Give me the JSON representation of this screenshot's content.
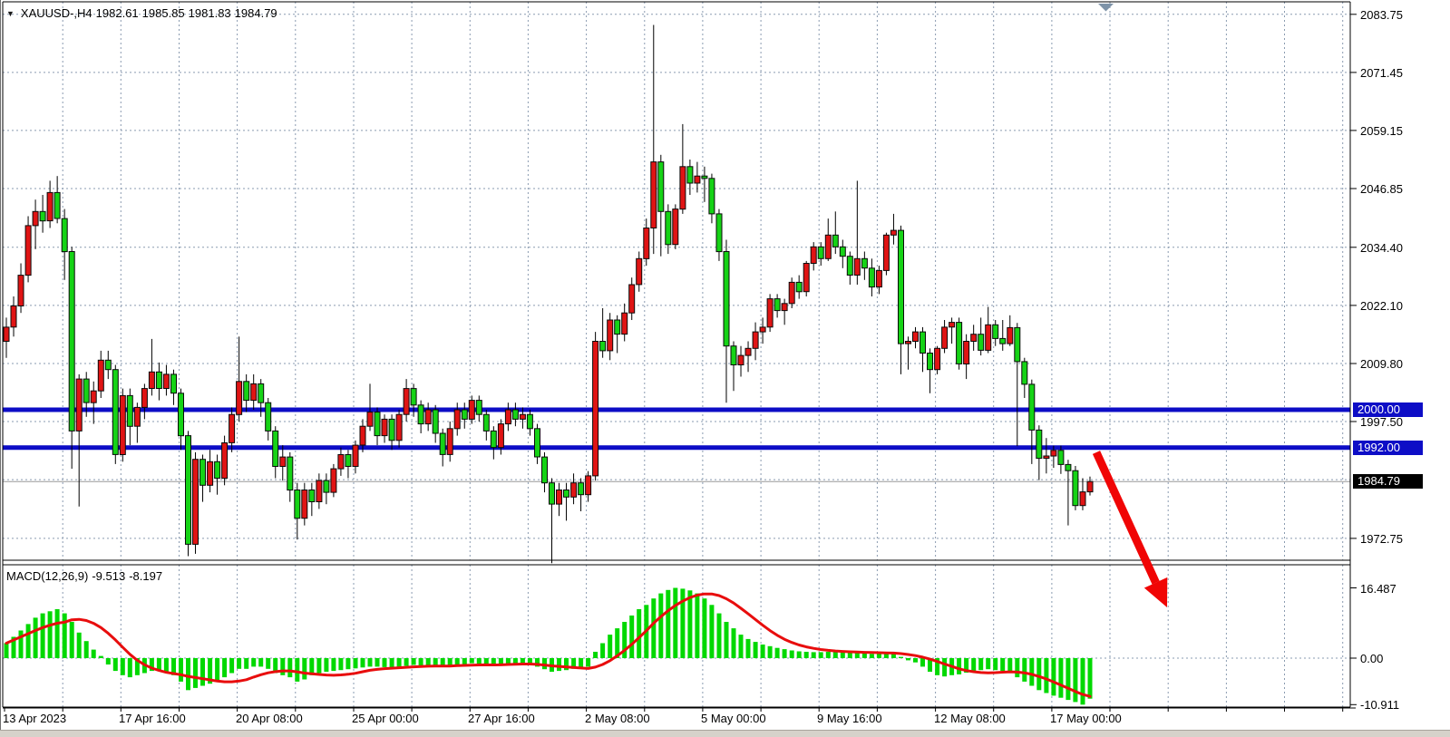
{
  "header": {
    "symbol": "XAUUSD-,H4",
    "open": "1982.61",
    "high": "1985.85",
    "low": "1981.83",
    "close": "1984.79"
  },
  "macd_header": {
    "label": "MACD(12,26,9)",
    "macd_value": "-9.513",
    "signal_value": "-8.197"
  },
  "chart_data": {
    "type": "candlestick",
    "symbol": "XAUUSD-",
    "timeframe": "H4",
    "grid": "on",
    "price_axis": {
      "ticks": [
        "2083.75",
        "2071.45",
        "2059.15",
        "2046.85",
        "2034.40",
        "2022.10",
        "2009.80",
        "1997.50",
        "1972.75"
      ],
      "grid_only_ticks": [
        1985.2
      ],
      "ylim": [
        1968.0,
        2086.4
      ]
    },
    "time_axis": {
      "labels": [
        "13 Apr 2023",
        "17 Apr 16:00",
        "20 Apr 08:00",
        "25 Apr 00:00",
        "27 Apr 16:00",
        "2 May 08:00",
        "5 May 00:00",
        "9 May 16:00",
        "12 May 08:00",
        "17 May 00:00"
      ],
      "bars_per_label": 16
    },
    "levels": [
      {
        "price": 2000.0,
        "label": "2000.00",
        "color": "#0d0dc6"
      },
      {
        "price": 1992.0,
        "label": "1992.00",
        "color": "#0d0dc6"
      }
    ],
    "current_price": {
      "price": 1984.79,
      "label": "1984.79",
      "line_color": "#999999",
      "box_color": "#000000"
    },
    "colors": {
      "bull_fill": "#e01414",
      "bear_fill": "#16d316",
      "candle_border": "#0a0a0a",
      "wick": "#000000",
      "grid": "#8a9bb0",
      "macd_histogram": "#00d800",
      "macd_signal": "#e80d0d",
      "level_blue": "#0d0dc6",
      "arrow_red": "#f00505",
      "shift_marker": "#7e93a8"
    },
    "annotations": {
      "trend_arrow": {
        "type": "arrow",
        "direction": "down-right",
        "color": "#f00505"
      }
    },
    "candles": [
      [
        2014.5,
        2019.5,
        2011.0,
        2017.5
      ],
      [
        2017.5,
        2024.0,
        2015.5,
        2022.0
      ],
      [
        2022.0,
        2031.0,
        2020.5,
        2028.5
      ],
      [
        2028.5,
        2041.0,
        2027.0,
        2039.0
      ],
      [
        2039.0,
        2044.5,
        2034.0,
        2042.0
      ],
      [
        2042.0,
        2045.5,
        2037.5,
        2040.0
      ],
      [
        2040.0,
        2048.5,
        2038.5,
        2046.0
      ],
      [
        2046.0,
        2049.5,
        2039.5,
        2040.5
      ],
      [
        2040.5,
        2042.5,
        2027.5,
        2033.5
      ],
      [
        2033.5,
        2034.5,
        1987.5,
        1995.5
      ],
      [
        1995.5,
        2007.5,
        1979.5,
        2006.5
      ],
      [
        2006.5,
        2008.0,
        1998.5,
        2001.5
      ],
      [
        2001.5,
        2006.0,
        1997.0,
        2004.0
      ],
      [
        2004.0,
        2012.5,
        2002.5,
        2010.5
      ],
      [
        2010.5,
        2012.5,
        2006.5,
        2008.5
      ],
      [
        2008.5,
        2009.5,
        1988.5,
        1990.5
      ],
      [
        1990.5,
        2004.5,
        1989.0,
        2003.0
      ],
      [
        2003.0,
        2004.5,
        1992.5,
        1996.5
      ],
      [
        1996.5,
        2001.5,
        1993.0,
        2000.5
      ],
      [
        2000.5,
        2005.5,
        1998.0,
        2004.5
      ],
      [
        2004.5,
        2015.0,
        2003.0,
        2008.0
      ],
      [
        2008.0,
        2010.0,
        2002.0,
        2004.5
      ],
      [
        2004.5,
        2009.5,
        2003.0,
        2007.5
      ],
      [
        2007.5,
        2008.5,
        2001.0,
        2003.5
      ],
      [
        2003.5,
        2004.5,
        1991.5,
        1994.5
      ],
      [
        1994.5,
        1995.5,
        1969.0,
        1971.5
      ],
      [
        1971.5,
        1991.0,
        1969.5,
        1989.5
      ],
      [
        1989.5,
        1990.5,
        1980.5,
        1984.0
      ],
      [
        1984.0,
        1991.5,
        1982.5,
        1989.0
      ],
      [
        1989.0,
        1990.5,
        1982.0,
        1985.5
      ],
      [
        1985.5,
        1994.5,
        1984.0,
        1993.0
      ],
      [
        1993.0,
        2000.5,
        1991.0,
        1999.0
      ],
      [
        1999.0,
        2015.5,
        1997.5,
        2006.0
      ],
      [
        2006.0,
        2007.5,
        1999.5,
        2002.0
      ],
      [
        2002.0,
        2007.5,
        2000.0,
        2005.5
      ],
      [
        2005.5,
        2006.5,
        1998.5,
        2001.5
      ],
      [
        2001.5,
        2002.5,
        1993.5,
        1995.5
      ],
      [
        1995.5,
        1996.5,
        1985.5,
        1988.0
      ],
      [
        1988.0,
        1992.5,
        1985.0,
        1990.0
      ],
      [
        1990.0,
        1991.0,
        1980.5,
        1983.0
      ],
      [
        1983.0,
        1984.5,
        1972.5,
        1977.0
      ],
      [
        1977.0,
        1984.5,
        1975.5,
        1983.0
      ],
      [
        1983.0,
        1984.5,
        1977.5,
        1980.5
      ],
      [
        1980.5,
        1986.5,
        1979.0,
        1985.0
      ],
      [
        1985.0,
        1986.5,
        1980.0,
        1982.5
      ],
      [
        1982.5,
        1988.5,
        1981.5,
        1987.5
      ],
      [
        1987.5,
        1992.0,
        1986.0,
        1990.5
      ],
      [
        1990.5,
        1991.5,
        1985.5,
        1988.0
      ],
      [
        1988.0,
        1993.5,
        1986.5,
        1992.5
      ],
      [
        1992.5,
        1998.0,
        1991.0,
        1996.5
      ],
      [
        1996.5,
        2005.5,
        1995.5,
        1999.5
      ],
      [
        1999.5,
        2000.5,
        1992.5,
        1994.5
      ],
      [
        1994.5,
        1999.0,
        1993.0,
        1998.0
      ],
      [
        1998.0,
        1999.0,
        1991.5,
        1993.5
      ],
      [
        1993.5,
        2000.0,
        1992.0,
        1999.0
      ],
      [
        1999.0,
        2006.5,
        1997.5,
        2004.5
      ],
      [
        2004.5,
        2005.5,
        1998.5,
        2001.0
      ],
      [
        2001.0,
        2002.0,
        1995.0,
        1997.0
      ],
      [
        1997.0,
        2001.5,
        1995.5,
        2000.0
      ],
      [
        2000.0,
        2001.0,
        1993.0,
        1995.0
      ],
      [
        1995.0,
        1996.0,
        1988.0,
        1990.5
      ],
      [
        1990.5,
        1997.5,
        1989.0,
        1996.0
      ],
      [
        1996.0,
        2001.5,
        1994.5,
        2000.0
      ],
      [
        2000.0,
        2001.5,
        1996.0,
        1998.0
      ],
      [
        1998.0,
        2003.0,
        1997.0,
        2002.0
      ],
      [
        2002.0,
        2003.0,
        1997.5,
        1999.0
      ],
      [
        1999.0,
        2000.0,
        1993.5,
        1995.5
      ],
      [
        1995.5,
        1996.5,
        1989.5,
        1992.0
      ],
      [
        1992.0,
        1998.0,
        1990.5,
        1997.0
      ],
      [
        1997.0,
        2001.5,
        1995.5,
        2000.0
      ],
      [
        2000.0,
        2001.5,
        1996.5,
        1998.0
      ],
      [
        1998.0,
        2000.5,
        1996.0,
        1999.0
      ],
      [
        1999.0,
        2000.0,
        1994.5,
        1996.0
      ],
      [
        1996.0,
        1997.0,
        1988.5,
        1990.0
      ],
      [
        1990.0,
        1991.0,
        1982.5,
        1984.5
      ],
      [
        1984.5,
        1985.5,
        1967.5,
        1980.0
      ],
      [
        1980.0,
        1984.5,
        1977.5,
        1983.0
      ],
      [
        1983.0,
        1984.5,
        1976.5,
        1981.5
      ],
      [
        1981.5,
        1986.5,
        1980.0,
        1984.5
      ],
      [
        1984.5,
        1985.5,
        1978.5,
        1982.0
      ],
      [
        1982.0,
        1987.0,
        1980.5,
        1986.0
      ],
      [
        1986.0,
        2016.5,
        1985.0,
        2014.5
      ],
      [
        2014.5,
        2021.5,
        2011.0,
        2012.5
      ],
      [
        2012.5,
        2020.5,
        2010.5,
        2019.0
      ],
      [
        2019.0,
        2020.0,
        2012.0,
        2016.0
      ],
      [
        2016.0,
        2022.5,
        2014.5,
        2020.5
      ],
      [
        2020.5,
        2028.0,
        2019.0,
        2026.5
      ],
      [
        2026.5,
        2033.5,
        2025.0,
        2032.0
      ],
      [
        2032.0,
        2040.5,
        2030.5,
        2038.5
      ],
      [
        2038.5,
        2081.5,
        2033.0,
        2052.5
      ],
      [
        2052.5,
        2054.0,
        2032.5,
        2042.0
      ],
      [
        2042.0,
        2043.5,
        2033.0,
        2035.0
      ],
      [
        2035.0,
        2043.5,
        2034.0,
        2042.5
      ],
      [
        2042.5,
        2060.5,
        2041.5,
        2051.5
      ],
      [
        2051.5,
        2053.0,
        2045.5,
        2048.0
      ],
      [
        2048.0,
        2052.5,
        2046.0,
        2049.5
      ],
      [
        2049.5,
        2051.5,
        2044.0,
        2049.0
      ],
      [
        2049.0,
        2050.0,
        2039.5,
        2041.5
      ],
      [
        2041.5,
        2042.5,
        2031.5,
        2033.5
      ],
      [
        2033.5,
        2036.0,
        2001.5,
        2013.5
      ],
      [
        2013.5,
        2014.5,
        2004.0,
        2009.5
      ],
      [
        2009.5,
        2013.5,
        2007.0,
        2011.5
      ],
      [
        2011.5,
        2014.5,
        2008.0,
        2013.0
      ],
      [
        2013.0,
        2018.5,
        2010.5,
        2016.5
      ],
      [
        2016.5,
        2019.5,
        2014.0,
        2017.5
      ],
      [
        2017.5,
        2024.5,
        2016.5,
        2023.5
      ],
      [
        2023.5,
        2024.5,
        2019.5,
        2021.0
      ],
      [
        2021.0,
        2023.5,
        2018.0,
        2022.5
      ],
      [
        2022.5,
        2028.0,
        2021.5,
        2027.0
      ],
      [
        2027.0,
        2028.5,
        2023.5,
        2025.0
      ],
      [
        2025.0,
        2031.5,
        2024.0,
        2031.0
      ],
      [
        2031.0,
        2035.5,
        2029.5,
        2034.5
      ],
      [
        2034.5,
        2035.5,
        2030.5,
        2032.0
      ],
      [
        2032.0,
        2040.5,
        2031.5,
        2037.0
      ],
      [
        2037.0,
        2042.0,
        2033.0,
        2034.5
      ],
      [
        2034.5,
        2036.0,
        2030.0,
        2032.5
      ],
      [
        2032.5,
        2033.5,
        2026.5,
        2028.5
      ],
      [
        2028.5,
        2048.5,
        2026.5,
        2032.0
      ],
      [
        2032.0,
        2033.5,
        2027.5,
        2030.0
      ],
      [
        2030.0,
        2032.0,
        2024.0,
        2026.0
      ],
      [
        2026.0,
        2030.5,
        2024.5,
        2029.5
      ],
      [
        2029.5,
        2037.5,
        2028.5,
        2037.0
      ],
      [
        2037.0,
        2041.5,
        2035.0,
        2038.0
      ],
      [
        2038.0,
        2039.0,
        2007.5,
        2014.0
      ],
      [
        2014.0,
        2015.5,
        2008.5,
        2014.5
      ],
      [
        2014.5,
        2017.5,
        2013.0,
        2016.5
      ],
      [
        2016.5,
        2017.5,
        2008.0,
        2012.0
      ],
      [
        2012.0,
        2013.0,
        2003.5,
        2008.5
      ],
      [
        2008.5,
        2013.5,
        2007.5,
        2013.0
      ],
      [
        2013.0,
        2019.0,
        2012.0,
        2017.5
      ],
      [
        2017.5,
        2019.5,
        2014.0,
        2018.5
      ],
      [
        2018.5,
        2019.5,
        2008.5,
        2009.7
      ],
      [
        2009.7,
        2016.0,
        2006.5,
        2014.5
      ],
      [
        2014.5,
        2018.0,
        2012.5,
        2016.0
      ],
      [
        2016.0,
        2019.5,
        2011.5,
        2012.6
      ],
      [
        2012.6,
        2021.8,
        2012.0,
        2018.0
      ],
      [
        2018.0,
        2019.0,
        2013.5,
        2015.1
      ],
      [
        2015.1,
        2019.0,
        2012.5,
        2014.0
      ],
      [
        2014.0,
        2020.0,
        2013.5,
        2017.4
      ],
      [
        2017.4,
        2018.4,
        1992.3,
        2010.2
      ],
      [
        2010.2,
        2011.0,
        2002.5,
        2005.4
      ],
      [
        2005.4,
        2006.4,
        1988.5,
        1995.7
      ],
      [
        1995.7,
        1996.7,
        1985.1,
        1989.7
      ],
      [
        1989.7,
        1994.0,
        1986.5,
        1990.2
      ],
      [
        1990.2,
        1992.4,
        1987.7,
        1991.4
      ],
      [
        1991.4,
        1992.4,
        1986.4,
        1988.4
      ],
      [
        1988.4,
        1989.4,
        1975.5,
        1987.1
      ],
      [
        1987.1,
        1988.1,
        1978.7,
        1979.7
      ],
      [
        1979.7,
        1985.5,
        1978.7,
        1982.6
      ],
      [
        1982.61,
        1985.85,
        1981.83,
        1984.79
      ]
    ],
    "macd": {
      "params": "12,26,9",
      "axis_ticks": {
        "max": "16.487",
        "zero": "0.00",
        "min": "-10.911"
      },
      "last_macd": -9.513,
      "last_signal": -8.197,
      "values": [
        3.5,
        5.0,
        6.5,
        8.0,
        9.5,
        10.5,
        11.0,
        11.5,
        10.5,
        8.5,
        6.0,
        4.0,
        2.0,
        0.5,
        -1.5,
        -3.0,
        -4.0,
        -4.5,
        -4.0,
        -3.5,
        -3.0,
        -3.0,
        -3.5,
        -4.0,
        -5.5,
        -7.5,
        -7.0,
        -6.5,
        -6.0,
        -5.5,
        -4.5,
        -3.5,
        -2.5,
        -2.5,
        -2.0,
        -2.0,
        -2.5,
        -3.5,
        -4.0,
        -4.5,
        -5.5,
        -5.0,
        -4.0,
        -3.5,
        -3.2,
        -3.0,
        -2.8,
        -2.6,
        -2.4,
        -2.2,
        -2.0,
        -2.0,
        -2.1,
        -2.2,
        -2.0,
        -1.8,
        -1.6,
        -1.8,
        -1.6,
        -1.8,
        -2.0,
        -1.8,
        -1.5,
        -1.4,
        -1.2,
        -1.3,
        -1.5,
        -1.8,
        -1.6,
        -1.3,
        -1.2,
        -1.1,
        -1.4,
        -2.0,
        -2.6,
        -3.2,
        -3.0,
        -2.8,
        -2.5,
        -2.3,
        -2.0,
        1.5,
        3.5,
        5.5,
        7.0,
        8.5,
        10.0,
        11.5,
        12.5,
        14.0,
        15.2,
        16.0,
        16.487,
        16.3,
        15.9,
        15.2,
        14.0,
        12.5,
        10.5,
        8.5,
        7.0,
        5.5,
        4.5,
        3.8,
        3.2,
        2.8,
        2.4,
        2.1,
        1.8,
        1.6,
        1.5,
        1.4,
        1.4,
        1.5,
        1.5,
        1.4,
        1.3,
        1.2,
        1.1,
        1.0,
        1.0,
        1.1,
        1.2,
        0.3,
        -0.5,
        -1.0,
        -2.0,
        -3.2,
        -4.0,
        -4.3,
        -4.0,
        -3.8,
        -3.4,
        -3.0,
        -2.8,
        -2.6,
        -2.8,
        -3.0,
        -3.5,
        -4.5,
        -5.5,
        -6.5,
        -7.5,
        -8.2,
        -8.8,
        -9.3,
        -9.8,
        -10.3,
        -10.911,
        -9.513
      ]
    }
  }
}
